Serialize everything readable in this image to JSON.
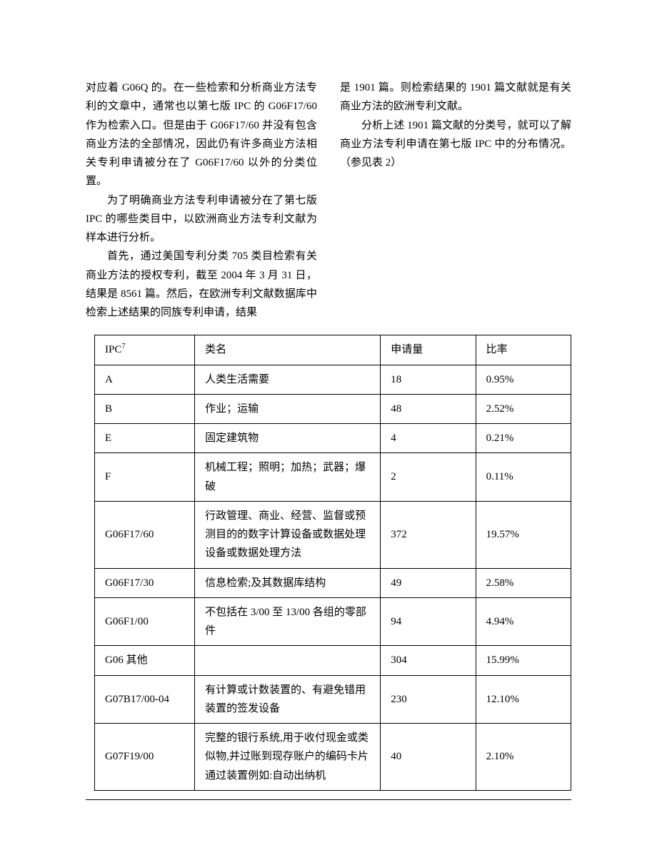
{
  "text": {
    "left": {
      "p1": "对应着 G06Q 的。在一些检索和分析商业方法专利的文章中，通常也以第七版 IPC 的 G06F17/60 作为检索入口。但是由于 G06F17/60 并没有包含商业方法的全部情况，因此仍有许多商业方法相关专利申请被分在了 G06F17/60 以外的分类位置。",
      "p2": "为了明确商业方法专利申请被分在了第七版 IPC 的哪些类目中，以欧洲商业方法专利文献为样本进行分析。",
      "p3": "首先，通过美国专利分类 705 类目检索有关商业方法的授权专利，截至 2004 年 3 月 31 日，结果是 8561 篇。然后，在欧洲专利文献数据库中检索上述结果的同族专利申请，结果"
    },
    "right": {
      "p1": "是 1901 篇。则检索结果的 1901 篇文献就是有关商业方法的欧洲专利文献。",
      "p2": "分析上述 1901 篇文献的分类号，就可以了解商业方法专利申请在第七版 IPC 中的分布情况。（参见表 2）"
    }
  },
  "table": {
    "header": {
      "ipc_prefix": "IPC",
      "ipc_sup": "7",
      "name": "类名",
      "count": "申请量",
      "rate": "比率"
    },
    "rows": [
      {
        "ipc": "A",
        "name": "人类生活需要",
        "count": "18",
        "rate": "0.95%"
      },
      {
        "ipc": "B",
        "name": "作业；运输",
        "count": "48",
        "rate": "2.52%"
      },
      {
        "ipc": "E",
        "name": "固定建筑物",
        "count": "4",
        "rate": "0.21%"
      },
      {
        "ipc": "F",
        "name": "机械工程；照明；加热；武器；爆破",
        "count": "2",
        "rate": "0.11%"
      },
      {
        "ipc": "G06F17/60",
        "name": "行政管理、商业、经营、监督或预测目的的数字计算设备或数据处理设备或数据处理方法",
        "count": "372",
        "rate": "19.57%"
      },
      {
        "ipc": "G06F17/30",
        "name": "信息检索;及其数据库结构",
        "count": "49",
        "rate": "2.58%"
      },
      {
        "ipc": "G06F1/00",
        "name": "不包括在 3/00 至 13/00 各组的零部件",
        "count": "94",
        "rate": "4.94%"
      },
      {
        "ipc": "G06 其他",
        "name": "",
        "count": "304",
        "rate": "15.99%"
      },
      {
        "ipc": "G07B17/00-04",
        "name": "有计算或计数装置的、有避免错用装置的签发设备",
        "count": "230",
        "rate": "12.10%"
      },
      {
        "ipc": "G07F19/00",
        "name": "完整的银行系统,用于收付现金或类似物,并过账到现存账户的编码卡片通过装置例如:自动出纳机",
        "count": "40",
        "rate": "2.10%"
      }
    ]
  }
}
